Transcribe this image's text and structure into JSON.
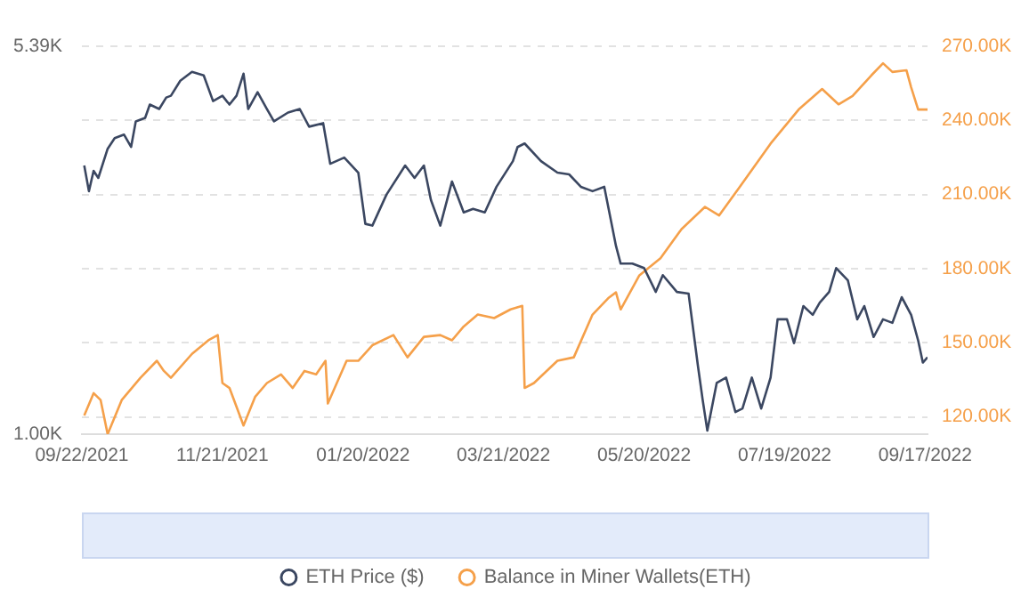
{
  "chart_data": {
    "type": "line",
    "xlim": [
      "2021-09-22",
      "2022-09-18"
    ],
    "xticks": [
      {
        "value": "2021-09-22",
        "label": "09/22/2021"
      },
      {
        "value": "2021-11-21",
        "label": "11/21/2021"
      },
      {
        "value": "2022-01-20",
        "label": "01/20/2022"
      },
      {
        "value": "2022-03-21",
        "label": "03/21/2022"
      },
      {
        "value": "2022-05-20",
        "label": "05/20/2022"
      },
      {
        "value": "2022-07-19",
        "label": "07/19/2022"
      },
      {
        "value": "2022-09-17",
        "label": "09/17/2022"
      }
    ],
    "ylim": [
      1000,
      5390
    ],
    "yticks": [
      {
        "value": 1000,
        "label": "1.00K"
      },
      {
        "value": 5390,
        "label": "5.39K"
      }
    ],
    "y2lim": [
      113000,
      270000
    ],
    "y2ticks": [
      {
        "value": 120000,
        "label": "120.00K"
      },
      {
        "value": 150000,
        "label": "150.00K"
      },
      {
        "value": 180000,
        "label": "180.00K"
      },
      {
        "value": 210000,
        "label": "210.00K"
      },
      {
        "value": 240000,
        "label": "240.00K"
      },
      {
        "value": 270000,
        "label": "270.00K"
      }
    ],
    "grid": "y",
    "legend": "bottom",
    "marker": "none",
    "line_style": "solid",
    "series": [
      {
        "name": "ETH Price ($)",
        "color": "#3b4761",
        "x": [
          "2021-09-23",
          "2021-09-25",
          "2021-09-27",
          "2021-09-29",
          "2021-10-03",
          "2021-10-06",
          "2021-10-10",
          "2021-10-13",
          "2021-10-15",
          "2021-10-19",
          "2021-10-21",
          "2021-10-25",
          "2021-10-28",
          "2021-10-30",
          "2021-11-03",
          "2021-11-08",
          "2021-11-13",
          "2021-11-17",
          "2021-11-21",
          "2021-11-24",
          "2021-11-27",
          "2021-11-30",
          "2021-12-02",
          "2021-12-06",
          "2021-12-10",
          "2021-12-13",
          "2021-12-19",
          "2021-12-24",
          "2021-12-28",
          "2022-01-03",
          "2022-01-06",
          "2022-01-12",
          "2022-01-18",
          "2022-01-21",
          "2022-01-24",
          "2022-01-30",
          "2022-02-07",
          "2022-02-11",
          "2022-02-15",
          "2022-02-18",
          "2022-02-22",
          "2022-02-27",
          "2022-03-04",
          "2022-03-08",
          "2022-03-13",
          "2022-03-18",
          "2022-03-25",
          "2022-03-27",
          "2022-03-30",
          "2022-04-06",
          "2022-04-13",
          "2022-04-18",
          "2022-04-23",
          "2022-04-28",
          "2022-05-03",
          "2022-05-08",
          "2022-05-10",
          "2022-05-15",
          "2022-05-20",
          "2022-05-25",
          "2022-05-28",
          "2022-06-03",
          "2022-06-08",
          "2022-06-12",
          "2022-06-14",
          "2022-06-16",
          "2022-06-20",
          "2022-06-24",
          "2022-06-28",
          "2022-07-01",
          "2022-07-05",
          "2022-07-09",
          "2022-07-13",
          "2022-07-16",
          "2022-07-20",
          "2022-07-23",
          "2022-07-27",
          "2022-07-31",
          "2022-08-03",
          "2022-08-07",
          "2022-08-10",
          "2022-08-15",
          "2022-08-19",
          "2022-08-22",
          "2022-08-26",
          "2022-08-30",
          "2022-09-03",
          "2022-09-07",
          "2022-09-11",
          "2022-09-14",
          "2022-09-16",
          "2022-09-18"
        ],
        "values": [
          4040,
          3750,
          3980,
          3900,
          4230,
          4350,
          4390,
          4250,
          4540,
          4580,
          4730,
          4680,
          4810,
          4830,
          5000,
          5100,
          5060,
          4770,
          4830,
          4730,
          4830,
          5080,
          4680,
          4870,
          4680,
          4540,
          4640,
          4680,
          4480,
          4520,
          4060,
          4130,
          3960,
          3380,
          3360,
          3710,
          4040,
          3900,
          4040,
          3650,
          3360,
          3860,
          3510,
          3550,
          3510,
          3800,
          4090,
          4250,
          4290,
          4090,
          3960,
          3940,
          3800,
          3750,
          3800,
          3130,
          2930,
          2930,
          2880,
          2610,
          2800,
          2610,
          2590,
          1770,
          1390,
          1040,
          1580,
          1640,
          1250,
          1290,
          1640,
          1290,
          1640,
          2300,
          2300,
          2030,
          2450,
          2350,
          2490,
          2610,
          2880,
          2740,
          2300,
          2450,
          2100,
          2300,
          2260,
          2550,
          2350,
          2060,
          1810,
          1870
        ]
      },
      {
        "name": "Balance in Miner Wallets(ETH)",
        "color": "#f5a04a",
        "axis": "y2",
        "x": [
          "2021-09-23",
          "2021-09-27",
          "2021-09-30",
          "2021-10-03",
          "2021-10-09",
          "2021-10-17",
          "2021-10-24",
          "2021-10-27",
          "2021-10-30",
          "2021-11-08",
          "2021-11-15",
          "2021-11-19",
          "2021-11-21",
          "2021-11-24",
          "2021-11-30",
          "2021-12-05",
          "2021-12-10",
          "2021-12-16",
          "2021-12-21",
          "2021-12-26",
          "2021-12-31",
          "2022-01-04",
          "2022-01-05",
          "2022-01-13",
          "2022-01-18",
          "2022-01-24",
          "2022-02-02",
          "2022-02-08",
          "2022-02-15",
          "2022-02-22",
          "2022-02-27",
          "2022-03-04",
          "2022-03-10",
          "2022-03-17",
          "2022-03-24",
          "2022-03-29",
          "2022-03-30",
          "2022-04-03",
          "2022-04-13",
          "2022-04-20",
          "2022-04-28",
          "2022-05-05",
          "2022-05-08",
          "2022-05-10",
          "2022-05-18",
          "2022-05-27",
          "2022-06-05",
          "2022-06-15",
          "2022-06-21",
          "2022-06-30",
          "2022-07-13",
          "2022-07-25",
          "2022-08-04",
          "2022-08-11",
          "2022-08-17",
          "2022-08-25",
          "2022-08-30",
          "2022-09-03",
          "2022-09-09",
          "2022-09-11",
          "2022-09-14",
          "2022-09-18"
        ],
        "values": [
          120600,
          129600,
          126800,
          113000,
          126800,
          135800,
          142700,
          138600,
          135800,
          145500,
          151000,
          153100,
          133700,
          131700,
          116500,
          128200,
          133700,
          137200,
          131700,
          138600,
          137200,
          142700,
          125400,
          142700,
          142700,
          149000,
          153100,
          144100,
          152400,
          153100,
          151000,
          156600,
          161400,
          160000,
          163500,
          164900,
          131700,
          133700,
          142700,
          144100,
          161400,
          168300,
          170400,
          163500,
          177300,
          184200,
          196000,
          205000,
          201500,
          213300,
          230600,
          244400,
          252700,
          246500,
          249900,
          258200,
          263100,
          259600,
          260300,
          253400,
          244400,
          244400
        ]
      }
    ]
  }
}
